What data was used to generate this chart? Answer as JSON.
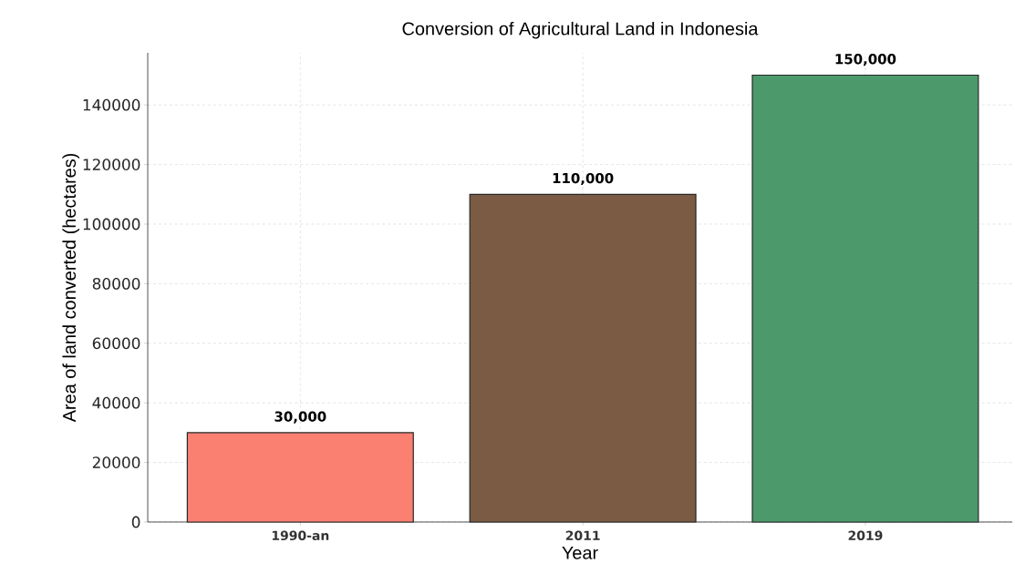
{
  "chart_data": {
    "type": "bar",
    "title": "Conversion of Agricultural Land in Indonesia",
    "xlabel": "Year",
    "ylabel": "Area of land converted (hectares)",
    "categories": [
      "1990-an",
      "2011",
      "2019"
    ],
    "values": [
      30000,
      110000,
      150000
    ],
    "colors": [
      "#fa8072",
      "#7b5b43",
      "#4c9a6c"
    ],
    "value_labels": [
      "30,000",
      "110,000",
      "150,000"
    ],
    "ylim": [
      0,
      157500
    ],
    "yticks": [
      0,
      20000,
      40000,
      60000,
      80000,
      100000,
      120000,
      140000
    ],
    "grid": true
  }
}
